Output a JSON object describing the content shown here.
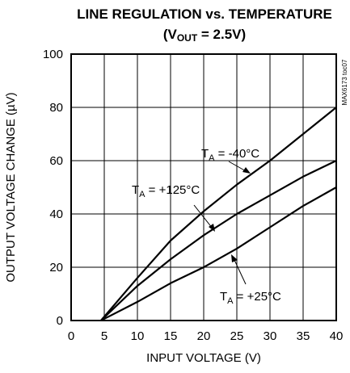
{
  "chart_data": {
    "type": "line",
    "title_line1": "LINE REGULATION vs. TEMPERATURE",
    "title_line2_prefix": "(V",
    "title_line2_sub": "OUT",
    "title_line2_suffix": " = 2.5V)",
    "xlabel": "INPUT VOLTAGE (V)",
    "ylabel": "OUTPUT VOLTAGE CHANGE (µV)",
    "figure_code": "MAX6173 toc07",
    "xlim": [
      0,
      40
    ],
    "ylim": [
      0,
      100
    ],
    "xticks": [
      0,
      5,
      10,
      15,
      20,
      25,
      30,
      35,
      40
    ],
    "yticks": [
      0,
      20,
      40,
      60,
      80,
      100
    ],
    "grid": true,
    "series": [
      {
        "name": "T_A = -40°C",
        "x": [
          4.5,
          10,
          15,
          20,
          25,
          30,
          35,
          40
        ],
        "y": [
          0,
          16,
          30,
          41,
          51,
          60,
          70,
          80
        ]
      },
      {
        "name": "T_A = +125°C",
        "x": [
          4.5,
          10,
          15,
          20,
          25,
          30,
          35,
          40
        ],
        "y": [
          0,
          13,
          23,
          32,
          40,
          47,
          54,
          60
        ]
      },
      {
        "name": "T_A = +25°C",
        "x": [
          4.5,
          10,
          15,
          20,
          25,
          30,
          35,
          40
        ],
        "y": [
          0,
          7,
          14,
          20,
          27,
          35,
          43,
          50
        ]
      }
    ],
    "annotations": [
      {
        "prefix": "T",
        "sub": "A",
        "suffix": " = -40°C"
      },
      {
        "prefix": "T",
        "sub": "A",
        "suffix": " = +125°C"
      },
      {
        "prefix": "T",
        "sub": "A",
        "suffix": " = +25°C"
      }
    ]
  }
}
